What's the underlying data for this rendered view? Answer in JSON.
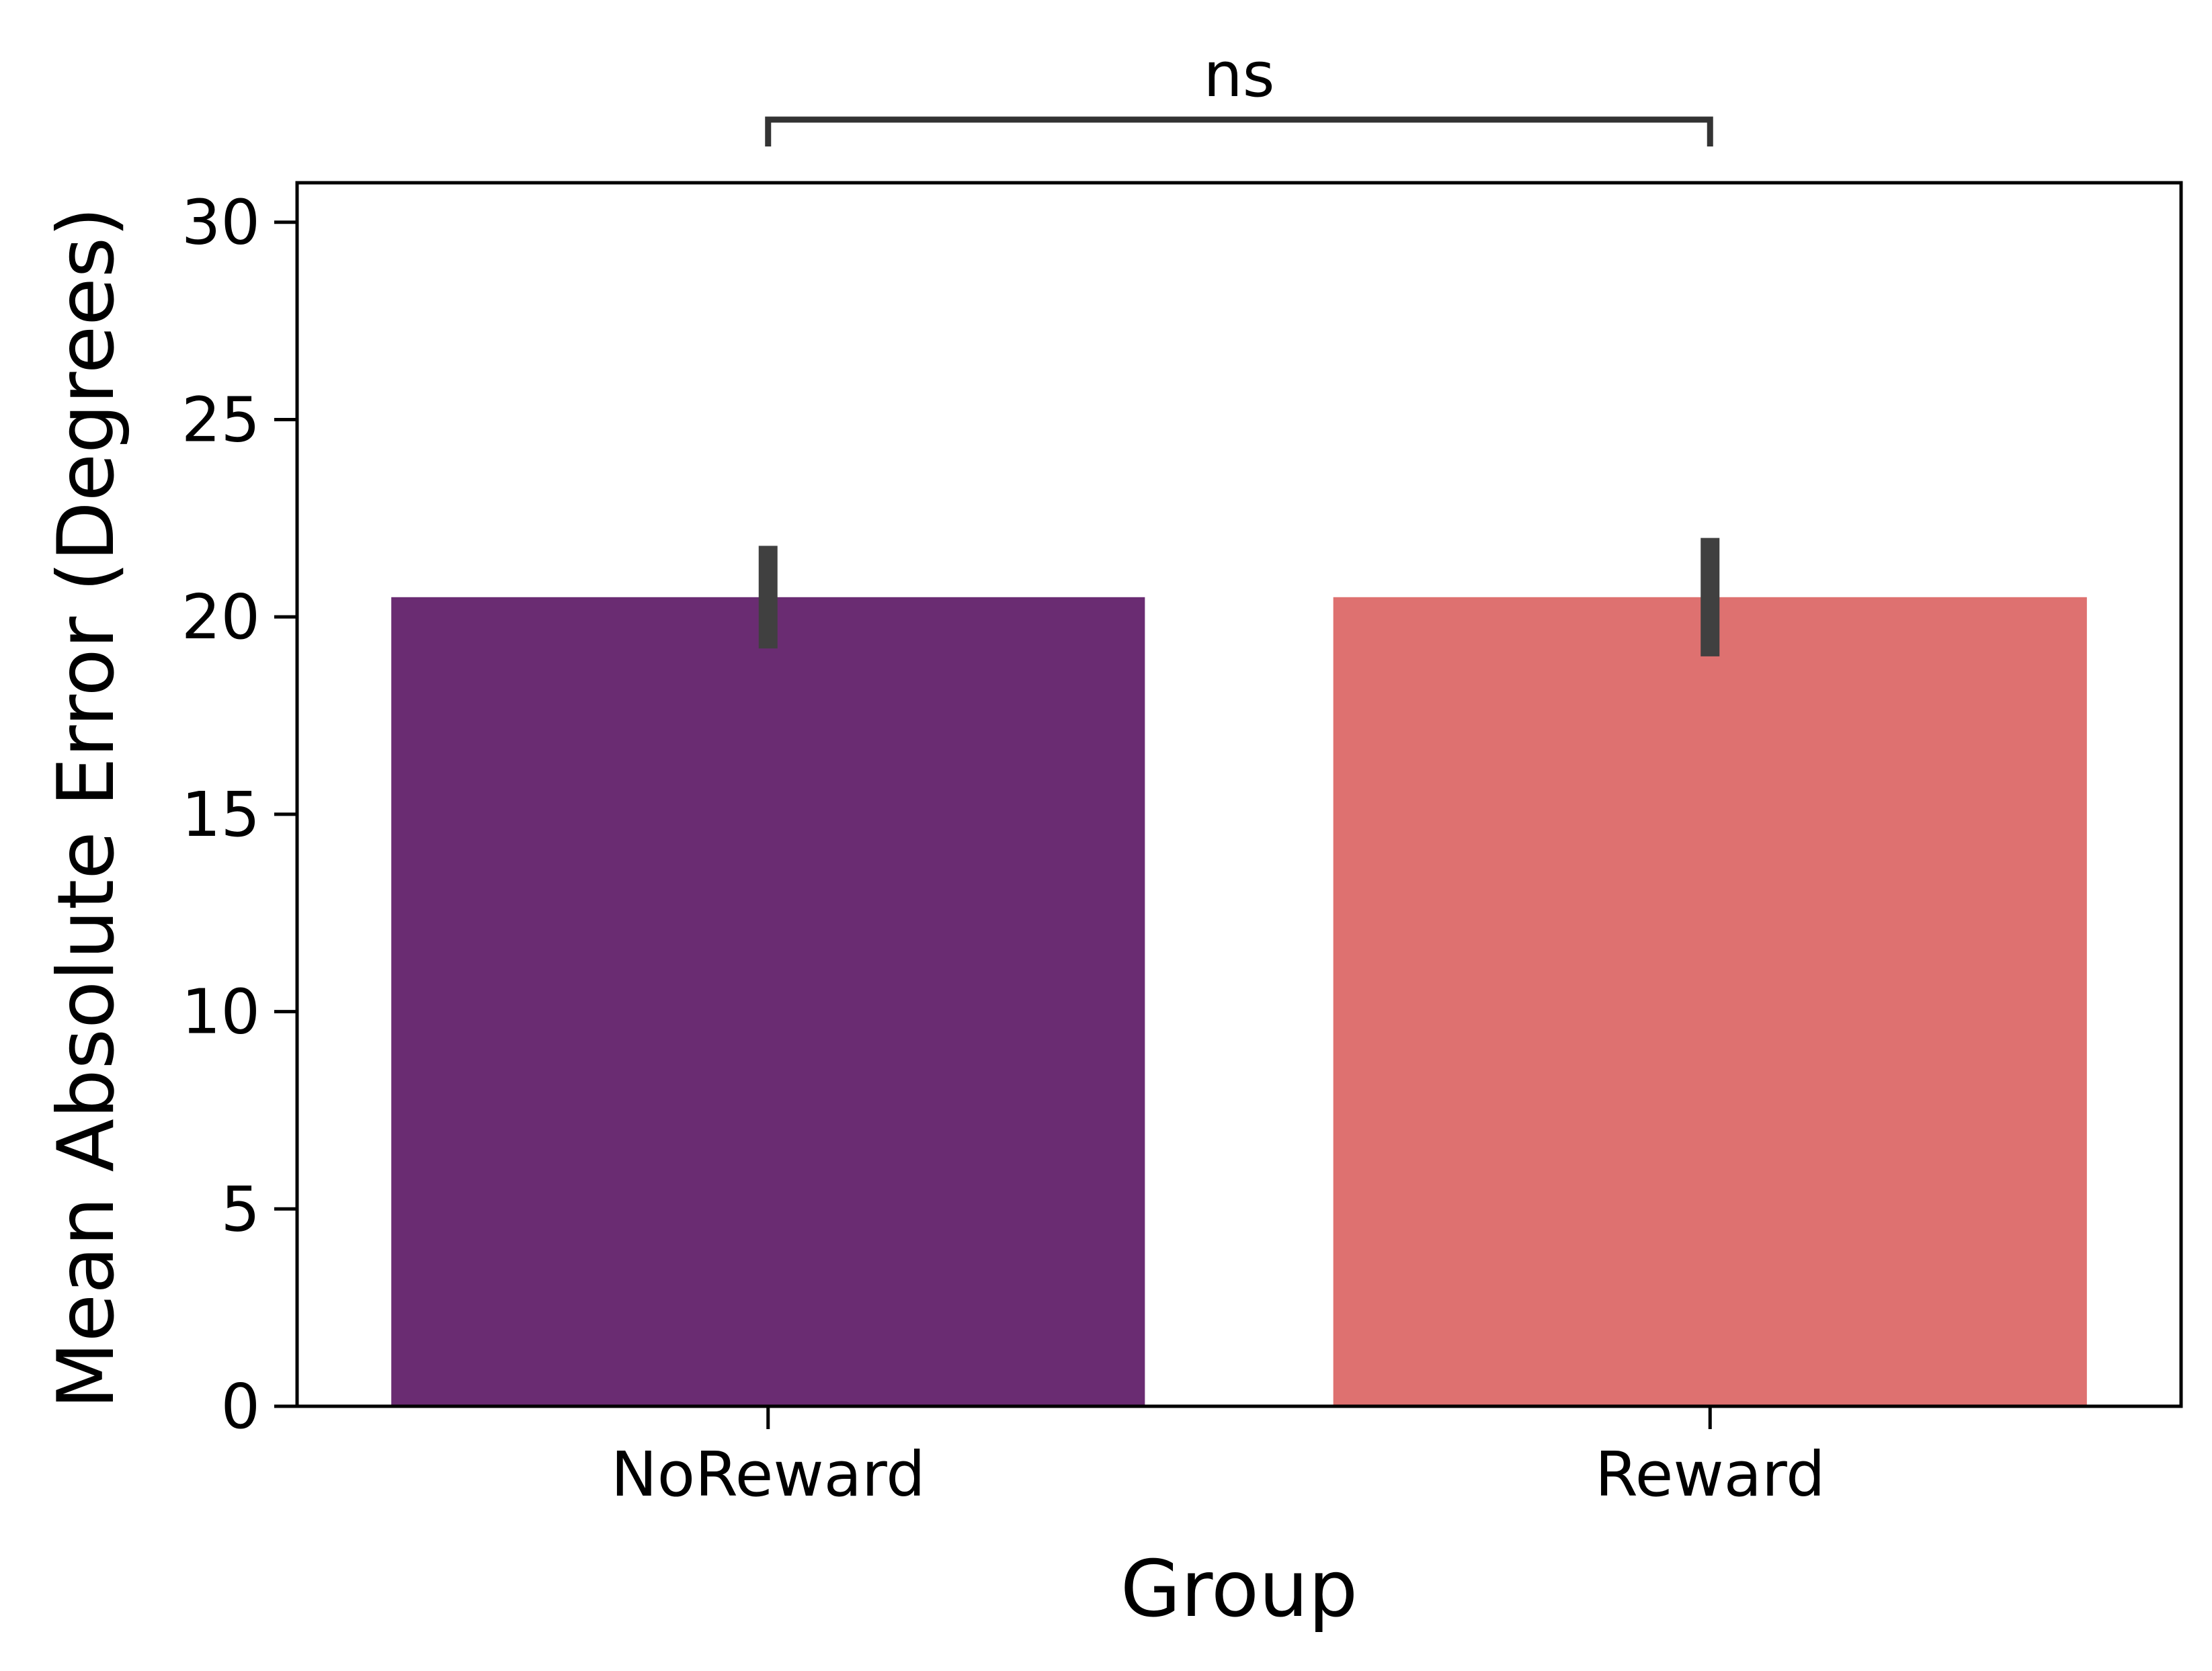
{
  "chart_data": {
    "type": "bar",
    "title": "",
    "xlabel": "Group",
    "ylabel": "Mean Absolute Error (Degrees)",
    "categories": [
      "NoReward",
      "Reward"
    ],
    "values": [
      20.5,
      20.5
    ],
    "error_bars": [
      {
        "low": 19.2,
        "high": 21.8
      },
      {
        "low": 19.0,
        "high": 22.0
      }
    ],
    "colors": [
      "#6a2c72",
      "#de7170"
    ],
    "error_bar_color": "#404040",
    "ylim": [
      0,
      31
    ],
    "yticks": [
      0,
      5,
      10,
      15,
      20,
      25,
      30
    ],
    "grid": false,
    "legend": "none",
    "annotations": [
      {
        "text": "ns",
        "between": [
          "NoReward",
          "Reward"
        ]
      }
    ]
  }
}
